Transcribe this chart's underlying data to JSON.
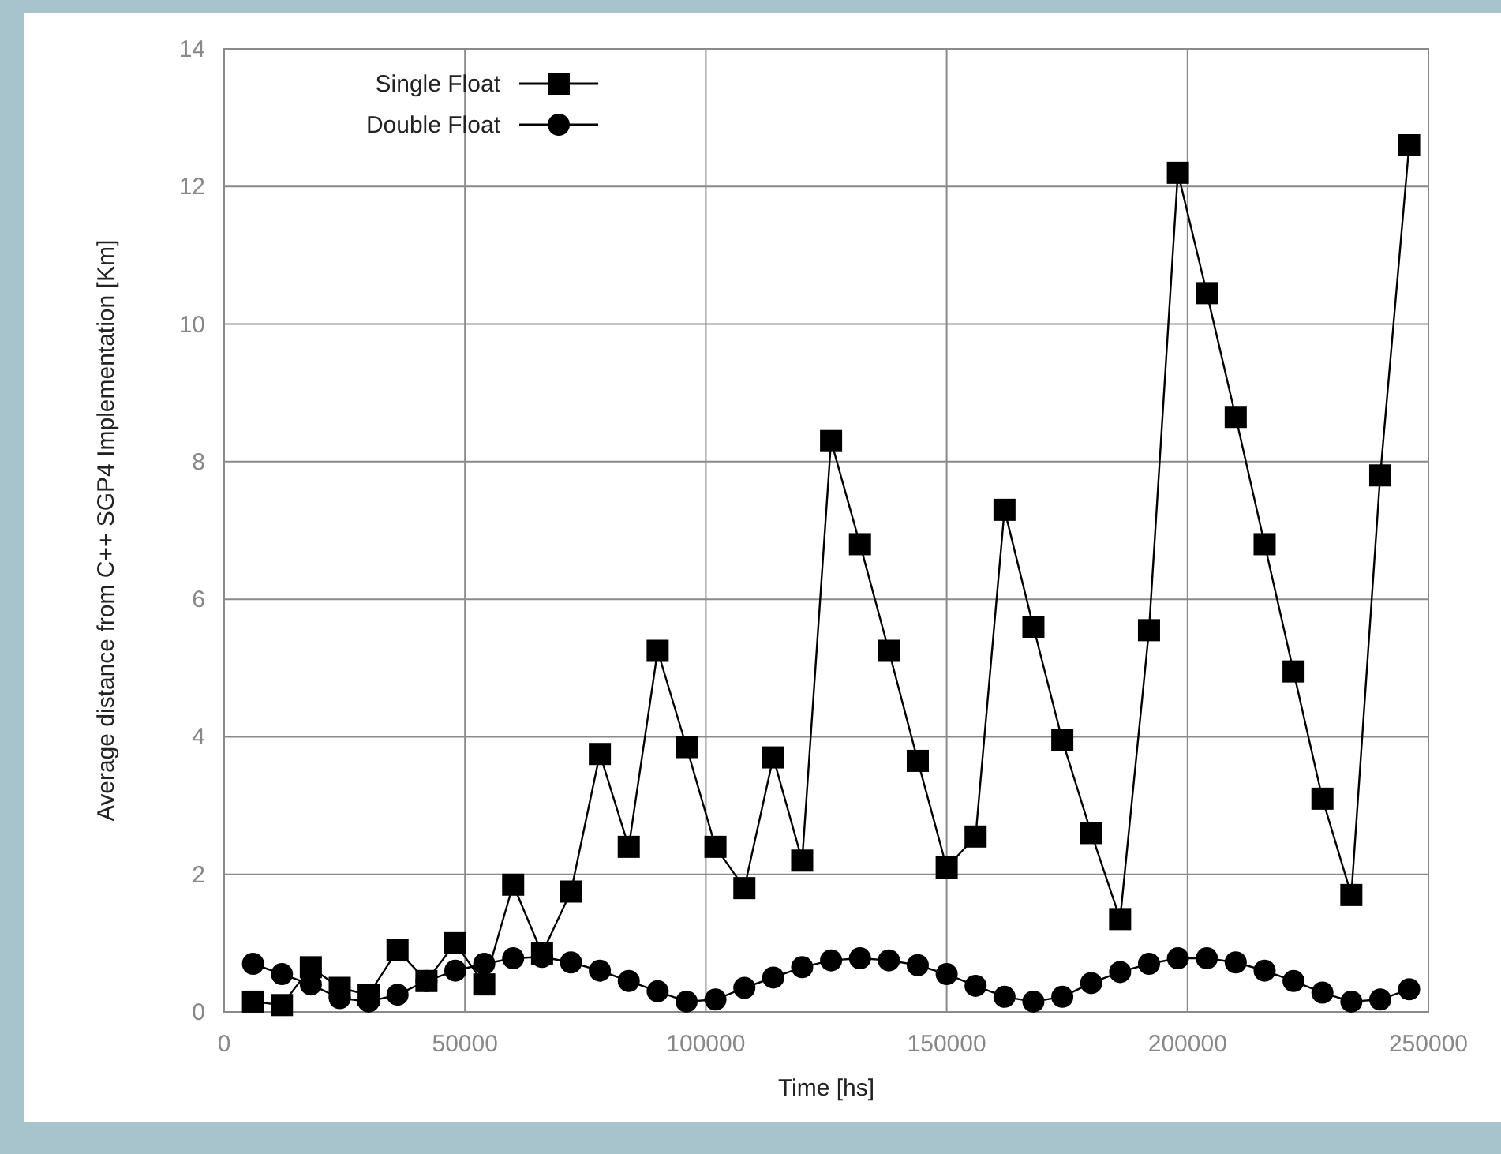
{
  "chart_data": {
    "type": "line",
    "xlabel": "Time [hs]",
    "ylabel": "Average distance from C++ SGP4 Implementation [Km]",
    "xlim": [
      0,
      250000
    ],
    "xticks": [
      0,
      50000,
      100000,
      150000,
      200000,
      250000
    ],
    "ylim": [
      0,
      14
    ],
    "yticks": [
      0,
      2,
      4,
      6,
      8,
      10,
      12,
      14
    ],
    "grid": true,
    "legend": "top left",
    "line_style": "solid",
    "x": [
      6000,
      12000,
      18000,
      24000,
      30000,
      36000,
      42000,
      48000,
      54000,
      60000,
      66000,
      72000,
      78000,
      84000,
      90000,
      96000,
      102000,
      108000,
      114000,
      120000,
      126000,
      132000,
      138000,
      144000,
      150000,
      156000,
      162000,
      168000,
      174000,
      180000,
      186000,
      192000,
      198000,
      204000,
      210000,
      216000,
      222000,
      228000,
      234000,
      240000,
      246000
    ],
    "series": [
      {
        "name": "Single Float",
        "color": "#000000",
        "marker": "square",
        "values": [
          0.15,
          0.1,
          0.65,
          0.35,
          0.25,
          0.9,
          0.45,
          1.0,
          0.4,
          1.85,
          0.85,
          1.75,
          3.75,
          2.4,
          5.25,
          3.85,
          2.4,
          1.8,
          3.7,
          2.2,
          8.3,
          6.8,
          5.25,
          3.65,
          2.1,
          2.55,
          7.3,
          5.6,
          3.95,
          2.6,
          1.35,
          5.55,
          12.2,
          10.45,
          8.65,
          6.8,
          4.95,
          3.1,
          1.7,
          7.8,
          12.6
        ]
      },
      {
        "name": "Double Float",
        "color": "#000000",
        "marker": "circle",
        "values": [
          0.7,
          0.55,
          0.4,
          0.2,
          0.15,
          0.25,
          0.45,
          0.6,
          0.7,
          0.78,
          0.8,
          0.72,
          0.6,
          0.45,
          0.3,
          0.15,
          0.18,
          0.35,
          0.5,
          0.65,
          0.75,
          0.78,
          0.75,
          0.68,
          0.55,
          0.38,
          0.22,
          0.15,
          0.22,
          0.42,
          0.58,
          0.7,
          0.78,
          0.78,
          0.72,
          0.6,
          0.45,
          0.28,
          0.15,
          0.18,
          0.33
        ]
      }
    ]
  }
}
